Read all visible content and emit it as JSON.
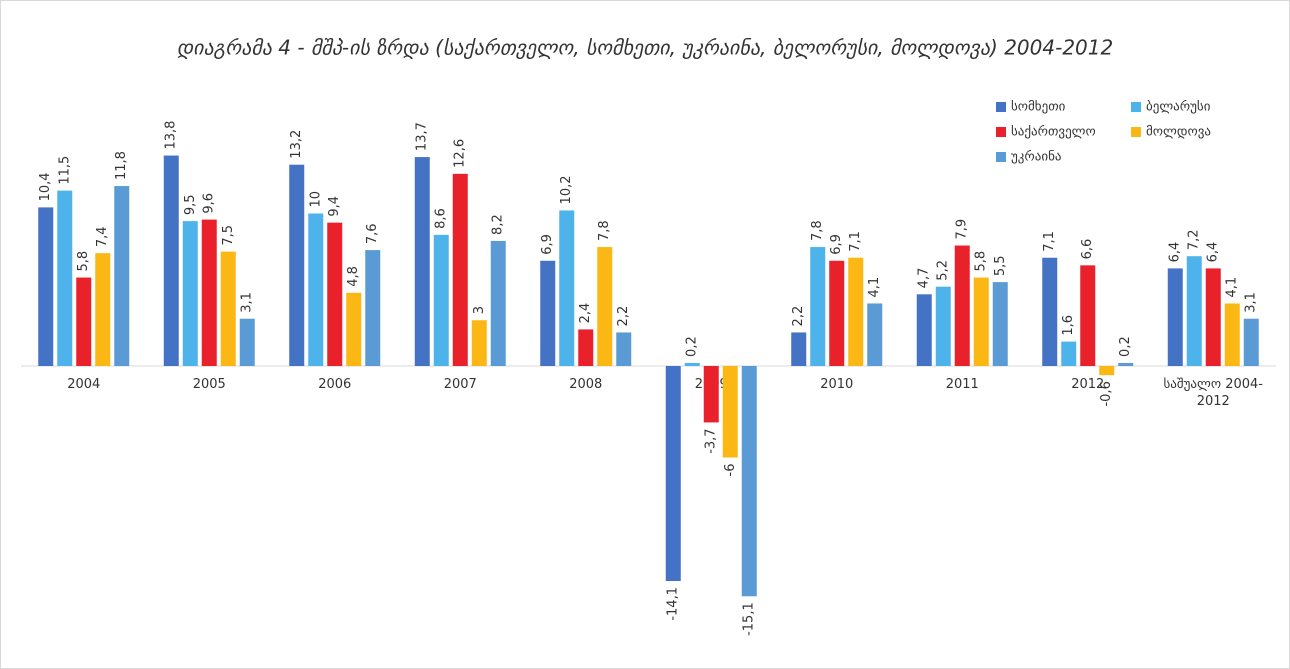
{
  "chart_data": {
    "type": "bar",
    "title": "დიაგრამა 4  - მშპ-ის ზრდა (საქართველო, სომხეთი, უკრაინა, ბელორუსი, მოლდოვა) 2004-2012",
    "categories": [
      "2004",
      "2005",
      "2006",
      "2007",
      "2008",
      "2009",
      "2010",
      "2011",
      "2012",
      "საშუალო 2004-2012"
    ],
    "series": [
      {
        "name": "სომხეთი",
        "color": "#4472c4",
        "values": [
          10.4,
          13.8,
          13.2,
          13.7,
          6.9,
          -14.1,
          2.2,
          4.7,
          7.1,
          6.4
        ],
        "value_labels": [
          "10,4",
          "13,8",
          "13,2",
          "13,7",
          "6,9",
          "-14,1",
          "2,2",
          "4,7",
          "7,1",
          "6,4"
        ]
      },
      {
        "name": "ბელარუსი",
        "color": "#4db3ea",
        "values": [
          11.5,
          9.5,
          10,
          8.6,
          10.2,
          0.2,
          7.8,
          5.2,
          1.6,
          7.2
        ],
        "value_labels": [
          "11,5",
          "9,5",
          "10",
          "8,6",
          "10,2",
          "0,2",
          "7,8",
          "5,2",
          "1,6",
          "7,2"
        ]
      },
      {
        "name": "საქართველო",
        "color": "#e8212b",
        "values": [
          5.8,
          9.6,
          9.4,
          12.6,
          2.4,
          -3.7,
          6.9,
          7.9,
          6.6,
          6.4
        ],
        "value_labels": [
          "5,8",
          "9,6",
          "9,4",
          "12,6",
          "2,4",
          "-3,7",
          "6,9",
          "7,9",
          "6,6",
          "6,4"
        ]
      },
      {
        "name": "მოლდოვა",
        "color": "#fbb714",
        "values": [
          7.4,
          7.5,
          4.8,
          3,
          7.8,
          -6,
          7.1,
          5.8,
          -0.6,
          4.1
        ],
        "value_labels": [
          "7,4",
          "7,5",
          "4,8",
          "3",
          "7,8",
          "-6",
          "7,1",
          "5,8",
          "-0,6",
          "4,1"
        ]
      },
      {
        "name": "უკრაინა",
        "color": "#5b9bd5",
        "values": [
          11.8,
          3.1,
          7.6,
          8.2,
          2.2,
          -15.1,
          4.1,
          5.5,
          0.2,
          3.1
        ],
        "value_labels": [
          "11,8",
          "3,1",
          "7,6",
          "8,2",
          "2,2",
          "-15,1",
          "4,1",
          "5,5",
          "0,2",
          "3,1"
        ]
      }
    ]
  }
}
